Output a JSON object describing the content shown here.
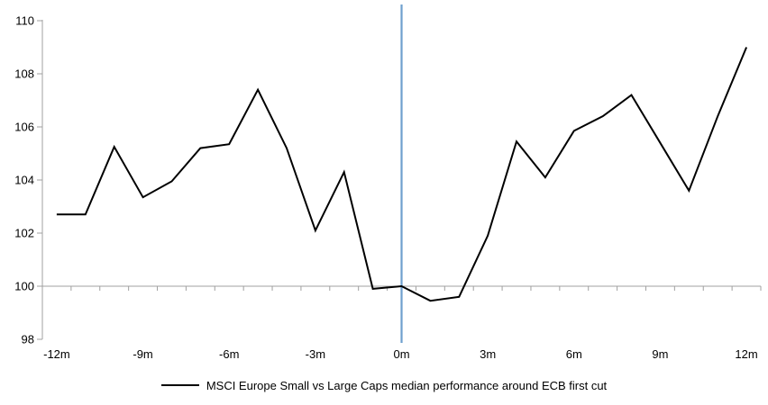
{
  "chart_data": {
    "type": "line",
    "x": [
      -12,
      -11,
      -10,
      -9,
      -8,
      -7,
      -6,
      -5,
      -4,
      -3,
      -2,
      -1,
      0,
      1,
      2,
      3,
      4,
      5,
      6,
      7,
      8,
      9,
      10,
      11,
      12
    ],
    "series": [
      {
        "name": "MSCI Europe Small vs Large Caps median performance around ECB first cut",
        "color": "#000000",
        "values": [
          102.7,
          102.7,
          105.25,
          103.35,
          103.95,
          105.2,
          105.35,
          107.4,
          105.2,
          102.1,
          104.3,
          99.9,
          100.0,
          99.45,
          99.6,
          101.9,
          105.45,
          104.1,
          105.85,
          106.4,
          107.2,
          105.4,
          103.6,
          106.4,
          109.0
        ]
      }
    ],
    "x_axis": {
      "tick_values": [
        -12,
        -9,
        -6,
        -3,
        0,
        3,
        6,
        9,
        12
      ],
      "tick_labels": [
        "-12m",
        "-9m",
        "-6m",
        "-3m",
        "0m",
        "3m",
        "6m",
        "9m",
        "12m"
      ],
      "crosses_at": 100
    },
    "y_axis": {
      "min": 98,
      "max": 110,
      "ticks": [
        98,
        100,
        102,
        104,
        106,
        108,
        110
      ],
      "tick_labels": [
        "98",
        "100",
        "102",
        "104",
        "106",
        "108",
        "110"
      ]
    },
    "event_line": {
      "x": 0,
      "color": "#6FA0CE"
    },
    "grid": false,
    "legend_position": "bottom-center",
    "title": "",
    "xlabel": "",
    "ylabel": ""
  },
  "colors": {
    "series_line": "#000000",
    "event_line": "#6FA0CE",
    "axis": "#A0A0A0",
    "text": "#000000",
    "background": "#FFFFFF"
  }
}
